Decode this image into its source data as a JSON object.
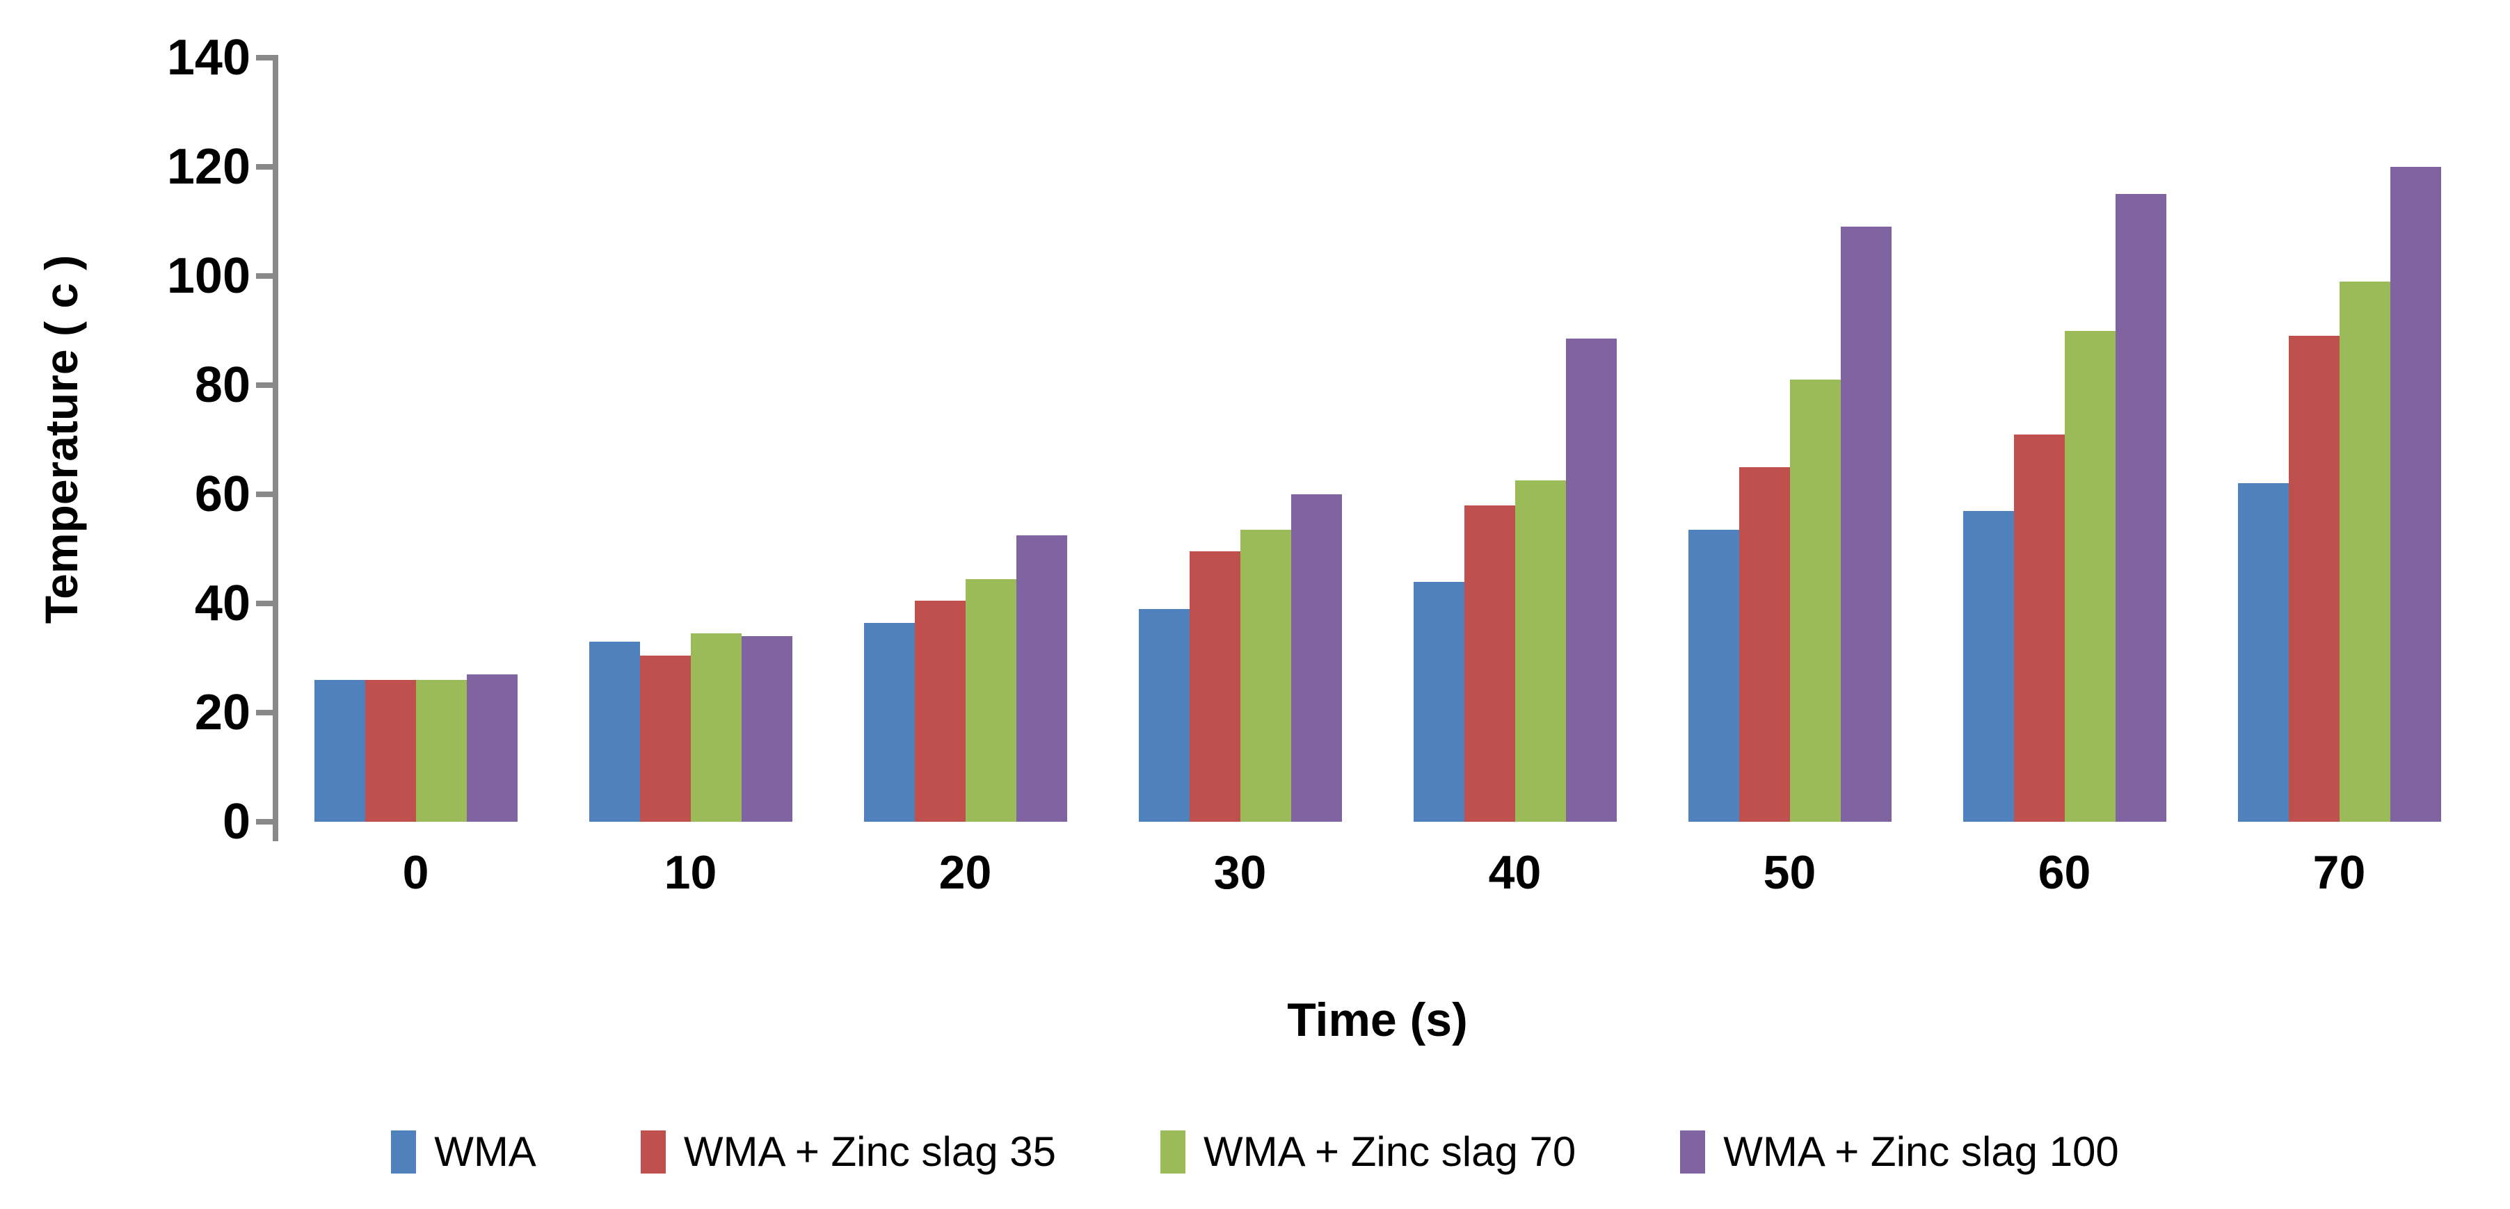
{
  "chart_data": {
    "type": "bar",
    "title": "",
    "xlabel": "Time (s)",
    "ylabel": "Temperature ( c )",
    "categories": [
      "0",
      "10",
      "20",
      "30",
      "40",
      "50",
      "60",
      "70"
    ],
    "series": [
      {
        "name": "WMA",
        "color": "#4F81BD",
        "values": [
          26,
          33,
          36.5,
          39,
          44,
          53.5,
          57,
          62
        ]
      },
      {
        "name": "WMA + Zinc slag 35",
        "color": "#C0504D",
        "values": [
          26,
          30.5,
          40.5,
          49.5,
          58,
          65,
          71,
          89
        ]
      },
      {
        "name": "WMA + Zinc slag 70",
        "color": "#9BBB59",
        "values": [
          26,
          34.5,
          44.5,
          53.5,
          62.5,
          81,
          90,
          99
        ]
      },
      {
        "name": "WMA + Zinc slag 100",
        "color": "#8064A2",
        "values": [
          27,
          34,
          52.5,
          60,
          88.5,
          109,
          115,
          120
        ]
      }
    ],
    "ylim": [
      0,
      140
    ],
    "yticks": [
      0,
      20,
      40,
      60,
      80,
      100,
      120,
      140
    ],
    "grid": false,
    "legend_position": "bottom",
    "axis_color": "#898989",
    "text_color": "#000000"
  }
}
